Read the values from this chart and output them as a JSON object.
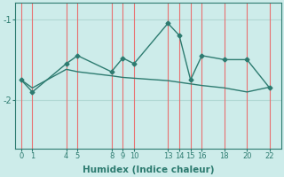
{
  "xlabel": "Humidex (Indice chaleur)",
  "background_color": "#cdecea",
  "line_color": "#2d7b70",
  "grid_color_v": "#e87070",
  "grid_color_h": "#b0d8d4",
  "x_ticks": [
    0,
    1,
    4,
    5,
    8,
    9,
    10,
    13,
    14,
    15,
    16,
    18,
    20,
    22
  ],
  "series1_x": [
    0,
    1,
    4,
    5,
    8,
    9,
    10,
    13,
    14,
    15,
    16,
    18,
    20,
    22
  ],
  "series1_y": [
    -1.75,
    -1.9,
    -1.55,
    -1.45,
    -1.65,
    -1.48,
    -1.55,
    -1.05,
    -1.2,
    -1.75,
    -1.45,
    -1.5,
    -1.5,
    -1.85
  ],
  "series2_x": [
    0,
    1,
    4,
    5,
    8,
    9,
    10,
    13,
    14,
    15,
    16,
    18,
    20,
    22
  ],
  "series2_y": [
    -1.75,
    -1.85,
    -1.62,
    -1.65,
    -1.7,
    -1.72,
    -1.73,
    -1.76,
    -1.78,
    -1.8,
    -1.82,
    -1.85,
    -1.9,
    -1.84
  ],
  "ylim": [
    -2.6,
    -0.8
  ],
  "yticks": [
    -2,
    -1
  ],
  "xlim": [
    -0.5,
    23.0
  ]
}
